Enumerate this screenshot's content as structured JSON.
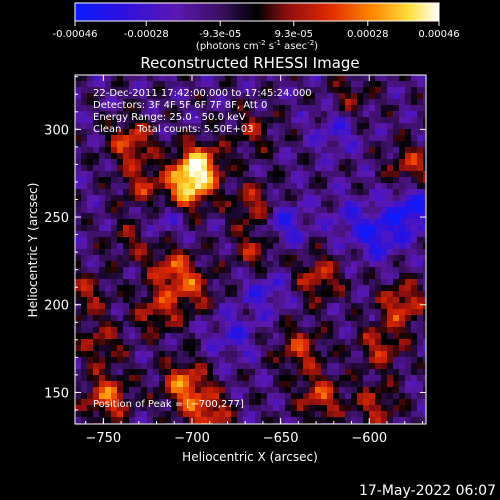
{
  "colorbar": {
    "tick_labels": [
      "-0.00046",
      "-0.00028",
      "-9.3e-05",
      "9.3e-05",
      "0.00028",
      "0.00046"
    ],
    "tick_values": [
      -0.00046,
      -0.00028,
      -9.3e-05,
      9.3e-05,
      0.00028,
      0.00046
    ],
    "range": [
      -0.00046,
      0.00046
    ],
    "units_line1": "(photons cm",
    "units_exp1": "-2",
    "units_line2": " s",
    "units_exp2": "-1",
    "units_line3": " asec",
    "units_exp3": "-2",
    "units_line4": ")"
  },
  "chart_data": {
    "type": "heatmap",
    "title": "Reconstructed RHESSI Image",
    "xlabel": "Heliocentric X (arcsec)",
    "ylabel": "Heliocentric Y (arcsec)",
    "xlim": [
      -766,
      -568
    ],
    "ylim": [
      132,
      331
    ],
    "x_ticks": [
      -750,
      -700,
      -650,
      -600
    ],
    "y_ticks": [
      150,
      200,
      250,
      300
    ],
    "x_tick_labels": [
      "−750",
      "−700",
      "−650",
      "−600"
    ],
    "y_tick_labels": [
      "150",
      "200",
      "250",
      "300"
    ],
    "peak": {
      "x": -700,
      "y": 277
    },
    "annotations": [
      "22-Dec-2011 17:42:00.000 to 17:45:24.000",
      "Detectors: 3F 4F 5F 6F 7F 8F, Att 0",
      "Energy Range: 25.0 - 50.0 keV",
      "Clean     Total counts: 5.50E+03"
    ],
    "peak_label": "Position of Peak = [−700,277]",
    "hotspots": [
      {
        "x": -697,
        "y": 280,
        "value": 0.00046
      },
      {
        "x": -703,
        "y": 267,
        "value": 0.0004
      },
      {
        "x": -735,
        "y": 293,
        "value": 0.0003
      },
      {
        "x": -728,
        "y": 268,
        "value": 0.00022
      },
      {
        "x": -666,
        "y": 258,
        "value": 0.00024
      },
      {
        "x": -760,
        "y": 208,
        "value": 0.0002
      },
      {
        "x": -712,
        "y": 222,
        "value": 0.00028
      },
      {
        "x": -700,
        "y": 210,
        "value": 0.00022
      },
      {
        "x": -720,
        "y": 198,
        "value": 0.00024
      },
      {
        "x": -665,
        "y": 232,
        "value": 0.00022
      },
      {
        "x": -630,
        "y": 217,
        "value": 0.00026
      },
      {
        "x": -578,
        "y": 280,
        "value": 0.00024
      },
      {
        "x": -583,
        "y": 202,
        "value": 0.0003
      },
      {
        "x": -595,
        "y": 178,
        "value": 0.00024
      },
      {
        "x": -752,
        "y": 180,
        "value": 0.0002
      },
      {
        "x": -748,
        "y": 150,
        "value": 0.00034
      },
      {
        "x": -705,
        "y": 157,
        "value": 0.00036
      },
      {
        "x": -692,
        "y": 140,
        "value": 0.0003
      },
      {
        "x": -640,
        "y": 177,
        "value": 0.00026
      },
      {
        "x": -629,
        "y": 150,
        "value": 0.00028
      },
      {
        "x": -598,
        "y": 145,
        "value": 0.00022
      },
      {
        "x": -667,
        "y": 300,
        "value": 0.00018
      },
      {
        "x": -612,
        "y": 318,
        "value": 0.00016
      },
      {
        "x": -734,
        "y": 238,
        "value": 0.00016
      }
    ],
    "coldspots": [
      {
        "x": -578,
        "y": 255,
        "value": -0.0003
      },
      {
        "x": -596,
        "y": 240,
        "value": -0.00024
      },
      {
        "x": -650,
        "y": 247,
        "value": -0.00022
      },
      {
        "x": -660,
        "y": 210,
        "value": -0.00018
      },
      {
        "x": -620,
        "y": 300,
        "value": -0.00016
      },
      {
        "x": -717,
        "y": 250,
        "value": -0.00014
      },
      {
        "x": -678,
        "y": 185,
        "value": -0.00016
      },
      {
        "x": -612,
        "y": 250,
        "value": -0.00014
      }
    ]
  },
  "footer": {
    "timestamp": "17-May-2022 06:07"
  }
}
